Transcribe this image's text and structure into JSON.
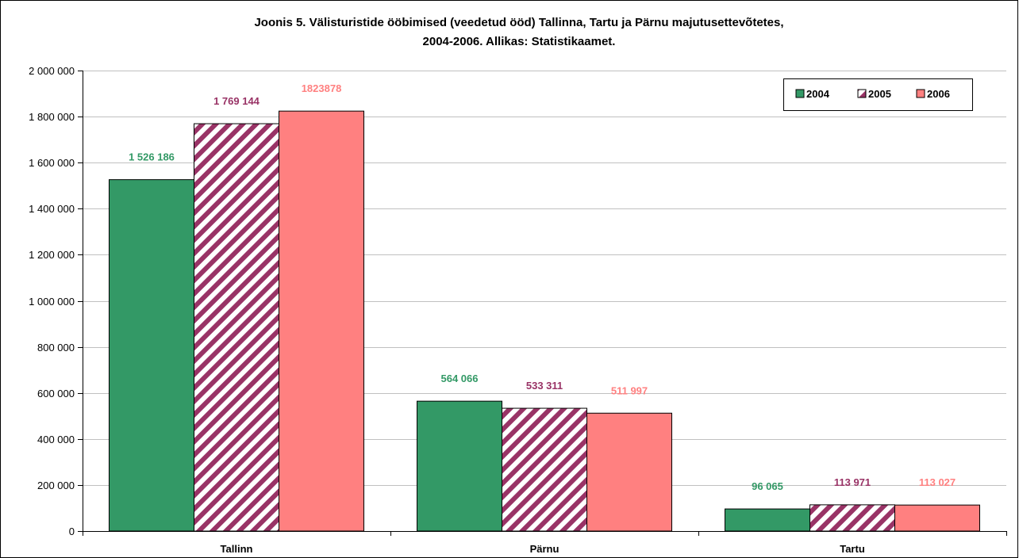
{
  "chart_data": {
    "type": "bar",
    "title_lines": [
      "Joonis 5. Välisturistide ööbimised (veedetud ööd) Tallinna, Tartu ja Pärnu majutusettevõtetes,",
      "2004-2006. Allikas: Statistikaamet."
    ],
    "categories": [
      "Tallinn",
      "Pärnu",
      "Tartu"
    ],
    "ylim": [
      0,
      2000000
    ],
    "yticks": [
      0,
      200000,
      400000,
      600000,
      800000,
      1000000,
      1200000,
      1400000,
      1600000,
      1800000,
      2000000
    ],
    "ytick_labels": [
      "0",
      "200 000",
      "400 000",
      "600 000",
      "800 000",
      "1 000 000",
      "1 200 000",
      "1 400 000",
      "1 600 000",
      "1 800 000",
      "2 000 000"
    ],
    "grid": true,
    "legend_position": "top-right",
    "series": [
      {
        "name": "2004",
        "color": "#339966",
        "label_color": "#339966",
        "pattern": "solid",
        "values": [
          1526186,
          564066,
          96065
        ],
        "labels": [
          "1 526 186",
          "564 066",
          "96 065"
        ]
      },
      {
        "name": "2005",
        "color": "#993366",
        "label_color": "#993366",
        "pattern": "diagonal-stripes",
        "values": [
          1769144,
          533311,
          113971
        ],
        "labels": [
          "1 769 144",
          "533 311",
          "113 971"
        ]
      },
      {
        "name": "2006",
        "color": "#FF8080",
        "label_color": "#FF8080",
        "pattern": "solid",
        "values": [
          1823878,
          511997,
          113027
        ],
        "labels": [
          "1823878",
          "511 997",
          "113 027"
        ]
      }
    ]
  }
}
